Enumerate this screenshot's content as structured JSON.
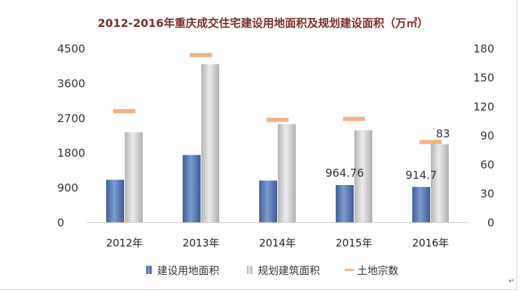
{
  "chart_data": {
    "type": "bar",
    "title": "2012-2016年重庆成交住宅建设用地面积及规划建设面积（万㎡）",
    "categories": [
      "2012年",
      "2013年",
      "2014年",
      "2015年",
      "2016年"
    ],
    "series": [
      {
        "name": "建设用地面积",
        "axis": "left",
        "kind": "bar",
        "color": "#5b7bb5",
        "values": [
          1100,
          1740,
          1080,
          964.76,
          914.7
        ],
        "data_labels": [
          "",
          "",
          "",
          "964.76",
          "914.7"
        ]
      },
      {
        "name": "规划建筑面积",
        "axis": "left",
        "kind": "bar",
        "color": "#c9c9c9",
        "values": [
          2330,
          4090,
          2540,
          2380,
          2020
        ]
      },
      {
        "name": "土地宗数",
        "axis": "right",
        "kind": "marker",
        "color": "#f4b183",
        "values": [
          115,
          173,
          106,
          107,
          83
        ],
        "data_labels": [
          "",
          "",
          "",
          "",
          "83"
        ]
      }
    ],
    "y_left": {
      "ylim": [
        0,
        4500
      ],
      "ticks": [
        "0",
        "900",
        "1800",
        "2700",
        "3600",
        "4500"
      ]
    },
    "y_right": {
      "ylim": [
        0,
        180
      ],
      "ticks": [
        "0",
        "30",
        "60",
        "90",
        "120",
        "150",
        "180"
      ]
    },
    "legend_position": "bottom"
  },
  "corner_mark": "↵"
}
